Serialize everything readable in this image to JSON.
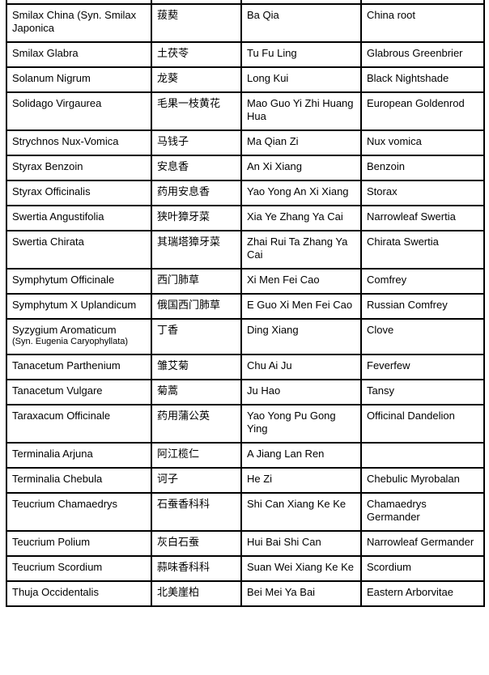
{
  "page": {
    "background_color": "#ffffff",
    "border_color": "#000000",
    "text_color": "#000000",
    "description": "Four-column herb name cross-reference table: Latin botanical name, Chinese name, Pinyin, English common name"
  },
  "table": {
    "rows": [
      {
        "latin": "Smilax China (Syn. Smilax Japonica",
        "latin_small": "",
        "chinese": "菝葜",
        "pinyin": "Ba Qia",
        "english": "China root"
      },
      {
        "latin": "Smilax Glabra",
        "latin_small": "",
        "chinese": "土茯苓",
        "pinyin": "Tu Fu Ling",
        "english": "Glabrous Greenbrier"
      },
      {
        "latin": "Solanum Nigrum",
        "latin_small": "",
        "chinese": "龙葵",
        "pinyin": "Long Kui",
        "english": "Black Nightshade"
      },
      {
        "latin": "Solidago Virgaurea",
        "latin_small": "",
        "chinese": "毛果一枝黄花",
        "pinyin": "Mao Guo Yi Zhi Huang Hua",
        "english": "European Goldenrod"
      },
      {
        "latin": "Strychnos Nux-Vomica",
        "latin_small": "",
        "chinese": "马钱子",
        "pinyin": "Ma Qian Zi",
        "english": "Nux vomica"
      },
      {
        "latin": "Styrax Benzoin",
        "latin_small": "",
        "chinese": "安息香",
        "pinyin": "An Xi Xiang",
        "english": "Benzoin"
      },
      {
        "latin": "Styrax Officinalis",
        "latin_small": "",
        "chinese": "药用安息香",
        "pinyin": "Yao Yong An Xi Xiang",
        "english": "Storax"
      },
      {
        "latin": "Swertia Angustifolia",
        "latin_small": "",
        "chinese": "狭叶獐牙菜",
        "pinyin": "Xia Ye Zhang Ya Cai",
        "english": "Narrowleaf Swertia"
      },
      {
        "latin": "Swertia Chirata",
        "latin_small": "",
        "chinese": "其瑞塔獐牙菜",
        "pinyin": "Zhai Rui Ta Zhang Ya Cai",
        "english": "Chirata Swertia"
      },
      {
        "latin": "Symphytum Officinale",
        "latin_small": "",
        "chinese": "西门肺草",
        "pinyin": "Xi Men Fei Cao",
        "english": "Comfrey"
      },
      {
        "latin": "Symphytum X Uplandicum",
        "latin_small": "",
        "chinese": "俄国西门肺草",
        "pinyin": "E Guo Xi Men Fei Cao",
        "english": "Russian Comfrey"
      },
      {
        "latin": "Syzygium Aromaticum",
        "latin_small": "(Syn. Eugenia Caryophyllata)",
        "chinese": "丁香",
        "pinyin": "Ding Xiang",
        "english": "Clove"
      },
      {
        "latin": "Tanacetum Parthenium",
        "latin_small": "",
        "chinese": "雏艾菊",
        "pinyin": "Chu Ai Ju",
        "english": "Feverfew"
      },
      {
        "latin": "Tanacetum Vulgare",
        "latin_small": "",
        "chinese": "菊蒿",
        "pinyin": "Ju Hao",
        "english": "Tansy"
      },
      {
        "latin": "Taraxacum Officinale",
        "latin_small": "",
        "chinese": "药用蒲公英",
        "pinyin": "Yao Yong Pu Gong Ying",
        "english": "Officinal Dandelion"
      },
      {
        "latin": "Terminalia Arjuna",
        "latin_small": "",
        "chinese": "阿江榄仁",
        "pinyin": "A Jiang Lan Ren",
        "english": ""
      },
      {
        "latin": "Terminalia Chebula",
        "latin_small": "",
        "chinese": "诃子",
        "pinyin": "He Zi",
        "english": "Chebulic Myrobalan"
      },
      {
        "latin": "Teucrium Chamaedrys",
        "latin_small": "",
        "chinese": "石蚕香科科",
        "pinyin": "Shi Can Xiang Ke Ke",
        "english": "Chamaedrys Germander"
      },
      {
        "latin": "Teucrium Polium",
        "latin_small": "",
        "chinese": "灰白石蚕",
        "pinyin": "Hui Bai Shi Can",
        "english": "Narrowleaf Germander"
      },
      {
        "latin": "Teucrium Scordium",
        "latin_small": "",
        "chinese": "蒜味香科科",
        "pinyin": "Suan Wei Xiang Ke Ke",
        "english": "Scordium"
      },
      {
        "latin": "Thuja Occidentalis",
        "latin_small": "",
        "chinese": "北美崖柏",
        "pinyin": "Bei Mei Ya Bai",
        "english": "Eastern Arborvitae"
      }
    ]
  }
}
